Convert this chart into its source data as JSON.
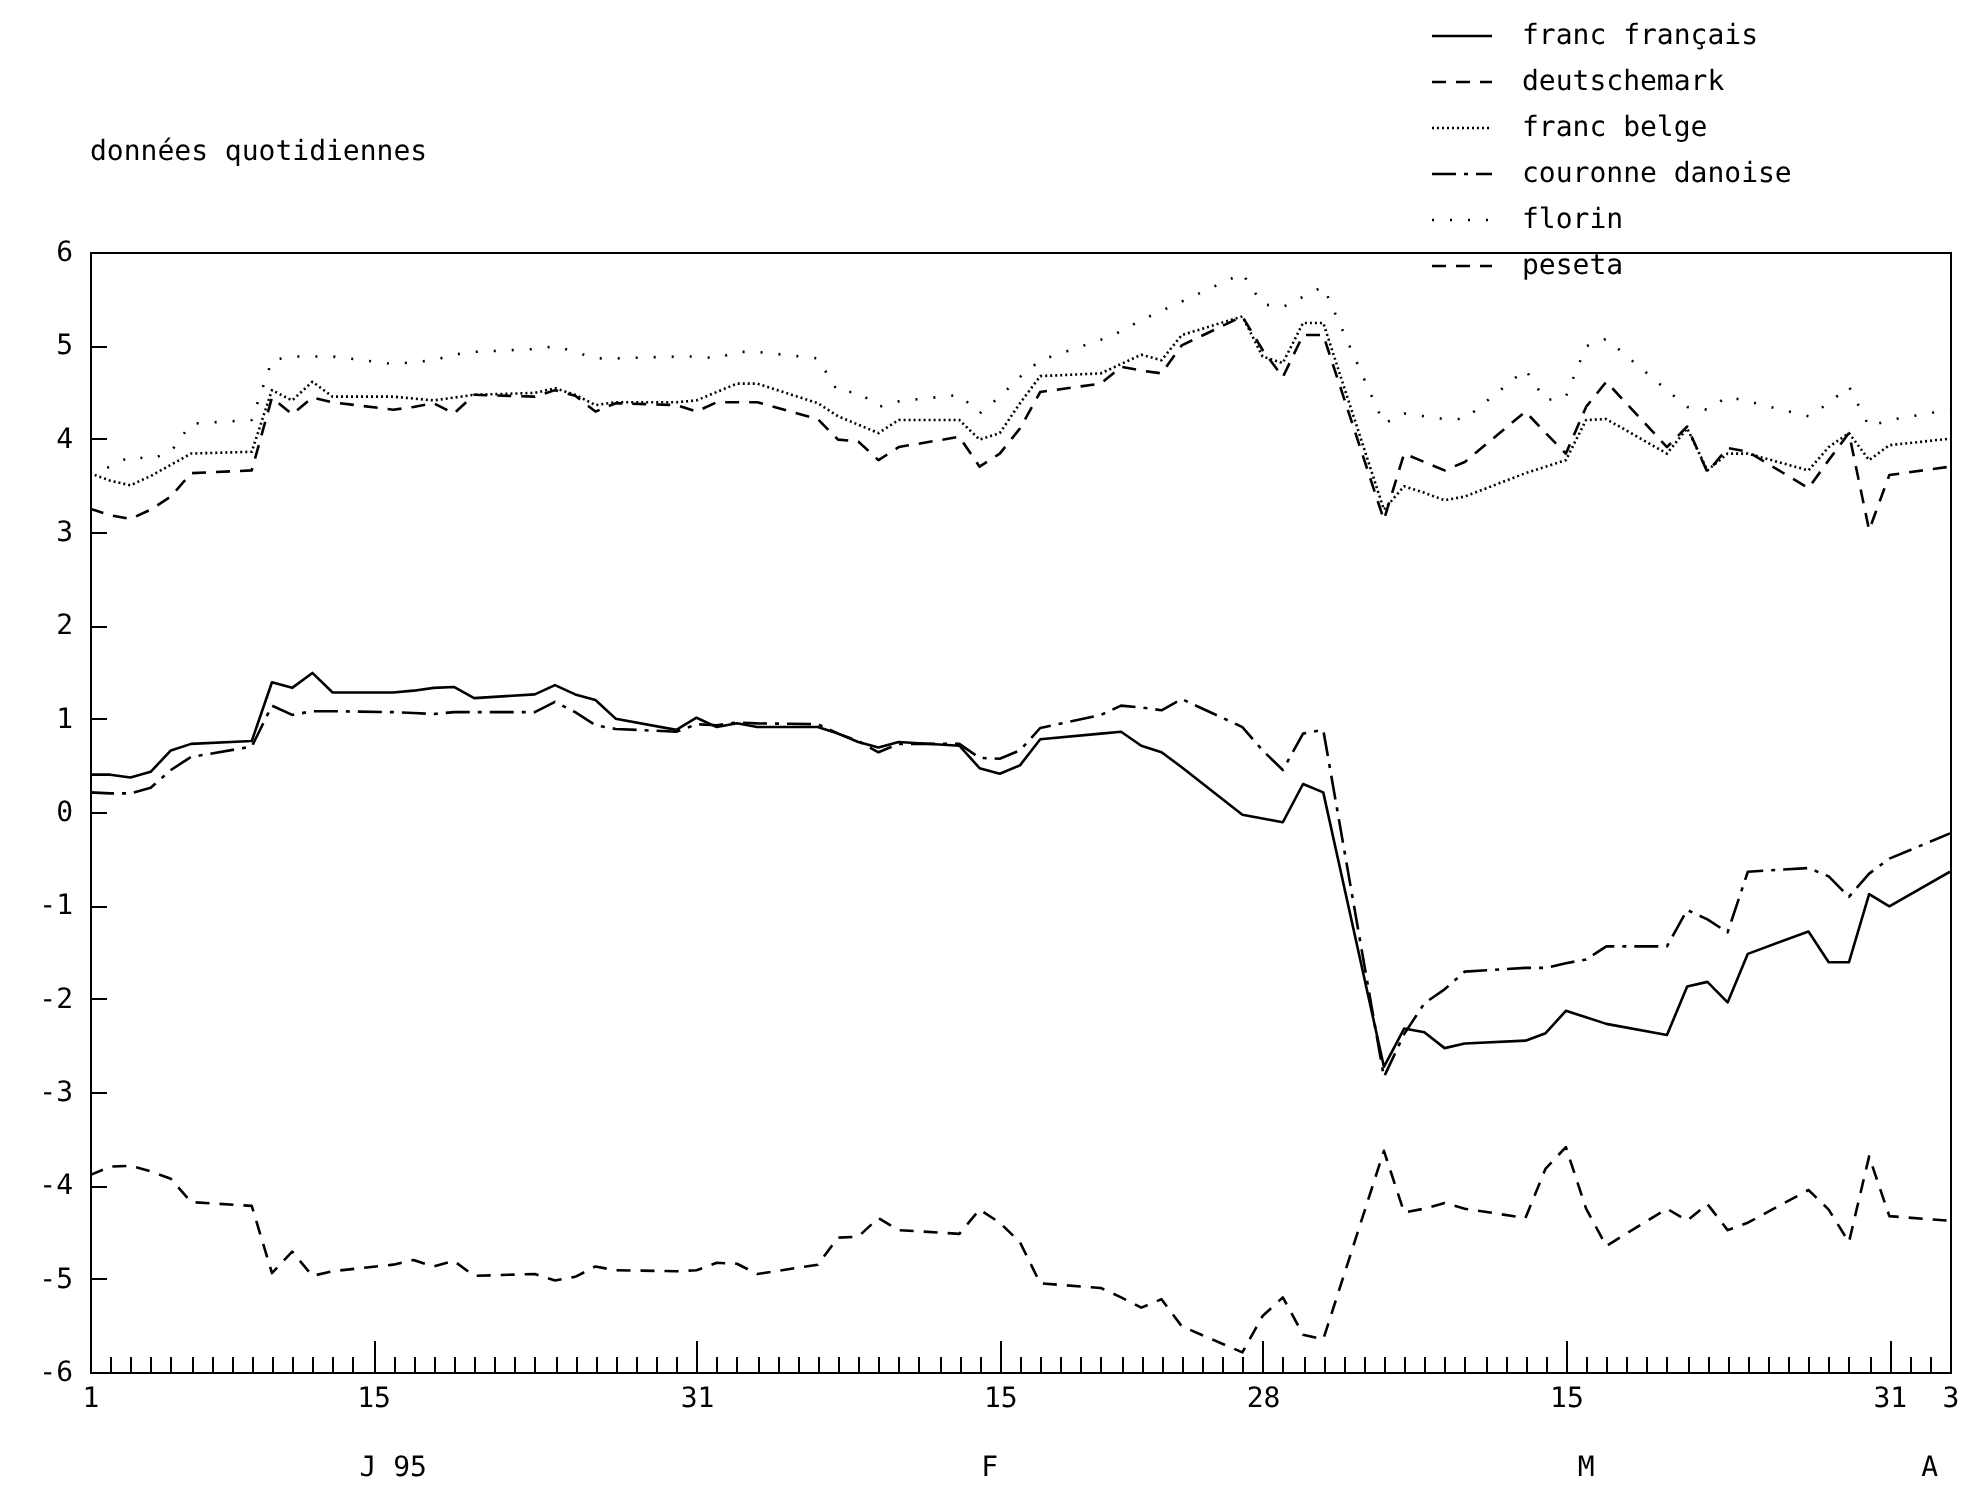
{
  "chart_data": {
    "type": "line",
    "title": "données quotidiennes",
    "x": [
      "--01-01",
      "--01-02",
      "--01-03",
      "--01-04",
      "--01-05",
      "--01-06",
      "--01-09",
      "--01-10",
      "--01-11",
      "--01-12",
      "--01-13",
      "--01-16",
      "--01-17",
      "--01-18",
      "--01-19",
      "--01-20",
      "--01-23",
      "--01-24",
      "--01-25",
      "--01-26",
      "--01-27",
      "--01-30",
      "--01-31",
      "--02-01",
      "--02-02",
      "--02-03",
      "--02-06",
      "--02-07",
      "--02-08",
      "--02-09",
      "--02-10",
      "--02-13",
      "--02-14",
      "--02-15",
      "--02-16",
      "--02-17",
      "--02-20",
      "--02-21",
      "--02-22",
      "--02-23",
      "--02-24",
      "--02-27",
      "--02-28",
      "--03-01",
      "--03-02",
      "--03-03",
      "--03-06",
      "--03-07",
      "--03-08",
      "--03-09",
      "--03-10",
      "--03-13",
      "--03-14",
      "--03-15",
      "--03-16",
      "--03-17",
      "--03-20",
      "--03-21",
      "--03-22",
      "--03-23",
      "--03-24",
      "--03-27",
      "--03-28",
      "--03-29",
      "--03-30",
      "--03-31",
      "--04-03"
    ],
    "series": [
      {
        "name": "franc français",
        "color": "#000000",
        "line_style": "solid",
        "values": [
          0.4,
          0.4,
          0.37,
          0.43,
          0.66,
          0.73,
          0.76,
          1.39,
          1.33,
          1.49,
          1.28,
          1.28,
          1.3,
          1.33,
          1.34,
          1.22,
          1.26,
          1.36,
          1.26,
          1.2,
          1.0,
          0.88,
          1.01,
          0.91,
          0.95,
          0.91,
          0.91,
          0.84,
          0.75,
          0.69,
          0.75,
          0.71,
          0.47,
          0.41,
          0.5,
          0.78,
          0.84,
          0.86,
          0.71,
          0.64,
          0.48,
          -0.03,
          -0.07,
          -0.11,
          0.3,
          0.21,
          -2.73,
          -2.32,
          -2.36,
          -2.53,
          -2.48,
          -2.45,
          -2.37,
          -2.13,
          -2.2,
          -2.27,
          -2.39,
          -1.87,
          -1.82,
          -2.04,
          -1.52,
          -1.28,
          -1.61,
          -1.61,
          -0.88,
          -1.01,
          -0.64
        ]
      },
      {
        "name": "deutschemark",
        "color": "#000000",
        "line_style": "dashed",
        "values": [
          3.25,
          3.18,
          3.14,
          3.24,
          3.38,
          3.63,
          3.66,
          4.44,
          4.26,
          4.44,
          4.39,
          4.31,
          4.34,
          4.38,
          4.27,
          4.47,
          4.45,
          4.52,
          4.46,
          4.29,
          4.38,
          4.36,
          4.29,
          4.39,
          4.39,
          4.39,
          4.21,
          3.99,
          3.97,
          3.77,
          3.91,
          4.02,
          3.7,
          3.84,
          4.11,
          4.5,
          4.59,
          4.77,
          4.73,
          4.7,
          5.0,
          5.31,
          4.95,
          4.66,
          5.11,
          5.11,
          3.13,
          3.84,
          3.75,
          3.66,
          3.75,
          4.29,
          4.06,
          3.84,
          4.34,
          4.61,
          3.91,
          4.13,
          3.64,
          3.9,
          3.86,
          3.47,
          3.77,
          4.06,
          3.02,
          3.61,
          3.7
        ]
      },
      {
        "name": "franc belge",
        "color": "#000000",
        "line_style": "dotted",
        "values": [
          3.63,
          3.55,
          3.5,
          3.6,
          3.72,
          3.84,
          3.86,
          4.52,
          4.41,
          4.61,
          4.45,
          4.45,
          4.43,
          4.41,
          4.44,
          4.47,
          4.49,
          4.54,
          4.47,
          4.36,
          4.39,
          4.39,
          4.41,
          4.5,
          4.59,
          4.59,
          4.38,
          4.24,
          4.15,
          4.06,
          4.2,
          4.2,
          3.99,
          4.06,
          4.38,
          4.67,
          4.7,
          4.8,
          4.9,
          4.84,
          5.11,
          5.31,
          4.88,
          4.81,
          5.24,
          5.24,
          3.24,
          3.49,
          3.42,
          3.34,
          3.38,
          3.63,
          3.7,
          3.77,
          4.2,
          4.21,
          3.84,
          4.11,
          3.66,
          3.84,
          3.84,
          3.66,
          3.91,
          4.06,
          3.77,
          3.93,
          4.0
        ]
      },
      {
        "name": "couronne danoise",
        "color": "#000000",
        "line_style": "dashdot",
        "values": [
          0.21,
          0.2,
          0.2,
          0.26,
          0.45,
          0.59,
          0.7,
          1.14,
          1.04,
          1.08,
          1.08,
          1.07,
          1.06,
          1.05,
          1.07,
          1.07,
          1.07,
          1.18,
          1.07,
          0.93,
          0.89,
          0.86,
          0.94,
          0.93,
          0.96,
          0.95,
          0.94,
          0.84,
          0.76,
          0.64,
          0.73,
          0.73,
          0.58,
          0.57,
          0.66,
          0.9,
          1.04,
          1.14,
          1.12,
          1.09,
          1.21,
          0.91,
          0.66,
          0.45,
          0.84,
          0.88,
          -2.84,
          -2.38,
          -2.05,
          -1.9,
          -1.71,
          -1.67,
          -1.67,
          -1.62,
          -1.58,
          -1.44,
          -1.44,
          -1.05,
          -1.15,
          -1.29,
          -0.64,
          -0.6,
          -0.69,
          -0.91,
          -0.66,
          -0.5,
          -0.23
        ]
      },
      {
        "name": "florin",
        "color": "#000000",
        "line_style": "loosely dotted",
        "values": [
          3.63,
          3.7,
          3.81,
          3.78,
          3.86,
          4.16,
          4.2,
          4.84,
          4.88,
          4.88,
          4.88,
          4.8,
          4.82,
          4.84,
          4.9,
          4.93,
          4.96,
          4.99,
          4.93,
          4.86,
          4.86,
          4.88,
          4.88,
          4.86,
          4.93,
          4.93,
          4.86,
          4.5,
          4.5,
          4.34,
          4.4,
          4.47,
          4.27,
          4.45,
          4.66,
          4.84,
          5.06,
          5.15,
          5.27,
          5.37,
          5.47,
          5.77,
          5.44,
          5.41,
          5.52,
          5.63,
          4.16,
          4.27,
          4.24,
          4.21,
          4.21,
          4.74,
          4.41,
          4.45,
          4.99,
          5.07,
          4.52,
          4.34,
          4.31,
          4.45,
          4.4,
          4.24,
          4.38,
          4.56,
          4.13,
          4.2,
          4.31
        ]
      },
      {
        "name": "peseta",
        "color": "#000000",
        "line_style": "dashed",
        "values": [
          -3.89,
          -3.8,
          -3.79,
          -3.85,
          -3.93,
          -4.18,
          -4.22,
          -4.94,
          -4.71,
          -4.97,
          -4.92,
          -4.85,
          -4.8,
          -4.87,
          -4.81,
          -4.97,
          -4.95,
          -5.02,
          -4.98,
          -4.87,
          -4.91,
          -4.92,
          -4.91,
          -4.83,
          -4.84,
          -4.95,
          -4.85,
          -4.56,
          -4.55,
          -4.35,
          -4.48,
          -4.52,
          -4.26,
          -4.4,
          -4.61,
          -5.05,
          -5.1,
          -5.2,
          -5.31,
          -5.22,
          -5.51,
          -5.79,
          -5.4,
          -5.2,
          -5.6,
          -5.65,
          -3.63,
          -4.29,
          -4.25,
          -4.19,
          -4.25,
          -4.35,
          -3.82,
          -3.59,
          -4.25,
          -4.65,
          -4.25,
          -4.38,
          -4.2,
          -4.48,
          -4.4,
          -4.05,
          -4.26,
          -4.61,
          -3.69,
          -4.33,
          -4.38
        ]
      }
    ],
    "xlim": [
      "--01-01",
      "--04-03"
    ],
    "xticks": [
      {
        "value": "--01-01",
        "label": "1"
      },
      {
        "value": "--01-02",
        "label": null
      },
      {
        "value": "--01-03",
        "label": null
      },
      {
        "value": "--01-04",
        "label": null
      },
      {
        "value": "--01-05",
        "label": null
      },
      {
        "value": "--01-06",
        "label": null
      },
      {
        "value": "--01-07",
        "label": null
      },
      {
        "value": "--01-08",
        "label": null
      },
      {
        "value": "--01-09",
        "label": null
      },
      {
        "value": "--01-10",
        "label": null
      },
      {
        "value": "--01-11",
        "label": null
      },
      {
        "value": "--01-12",
        "label": null
      },
      {
        "value": "--01-13",
        "label": null
      },
      {
        "value": "--01-14",
        "label": null
      },
      {
        "value": "--01-15",
        "label": "15"
      },
      {
        "value": "--01-16",
        "label": null
      },
      {
        "value": "--01-17",
        "label": null
      },
      {
        "value": "--01-18",
        "label": null
      },
      {
        "value": "--01-19",
        "label": null
      },
      {
        "value": "--01-20",
        "label": null
      },
      {
        "value": "--01-21",
        "label": null
      },
      {
        "value": "--01-22",
        "label": null
      },
      {
        "value": "--01-23",
        "label": null
      },
      {
        "value": "--01-24",
        "label": null
      },
      {
        "value": "--01-25",
        "label": null
      },
      {
        "value": "--01-26",
        "label": null
      },
      {
        "value": "--01-27",
        "label": null
      },
      {
        "value": "--01-28",
        "label": null
      },
      {
        "value": "--01-29",
        "label": null
      },
      {
        "value": "--01-30",
        "label": null
      },
      {
        "value": "--01-31",
        "label": "31"
      },
      {
        "value": "--02-01",
        "label": null
      },
      {
        "value": "--02-02",
        "label": null
      },
      {
        "value": "--02-03",
        "label": null
      },
      {
        "value": "--02-04",
        "label": null
      },
      {
        "value": "--02-05",
        "label": null
      },
      {
        "value": "--02-06",
        "label": null
      },
      {
        "value": "--02-07",
        "label": null
      },
      {
        "value": "--02-08",
        "label": null
      },
      {
        "value": "--02-09",
        "label": null
      },
      {
        "value": "--02-10",
        "label": null
      },
      {
        "value": "--02-11",
        "label": null
      },
      {
        "value": "--02-12",
        "label": null
      },
      {
        "value": "--02-13",
        "label": null
      },
      {
        "value": "--02-14",
        "label": null
      },
      {
        "value": "--02-15",
        "label": "15"
      },
      {
        "value": "--02-16",
        "label": null
      },
      {
        "value": "--02-17",
        "label": null
      },
      {
        "value": "--02-18",
        "label": null
      },
      {
        "value": "--02-19",
        "label": null
      },
      {
        "value": "--02-20",
        "label": null
      },
      {
        "value": "--02-21",
        "label": null
      },
      {
        "value": "--02-22",
        "label": null
      },
      {
        "value": "--02-23",
        "label": null
      },
      {
        "value": "--02-24",
        "label": null
      },
      {
        "value": "--02-25",
        "label": null
      },
      {
        "value": "--02-26",
        "label": null
      },
      {
        "value": "--02-27",
        "label": null
      },
      {
        "value": "--02-28",
        "label": "28"
      },
      {
        "value": "--03-01",
        "label": null
      },
      {
        "value": "--03-02",
        "label": null
      },
      {
        "value": "--03-03",
        "label": null
      },
      {
        "value": "--03-04",
        "label": null
      },
      {
        "value": "--03-05",
        "label": null
      },
      {
        "value": "--03-06",
        "label": null
      },
      {
        "value": "--03-07",
        "label": null
      },
      {
        "value": "--03-08",
        "label": null
      },
      {
        "value": "--03-09",
        "label": null
      },
      {
        "value": "--03-10",
        "label": null
      },
      {
        "value": "--03-11",
        "label": null
      },
      {
        "value": "--03-12",
        "label": null
      },
      {
        "value": "--03-13",
        "label": null
      },
      {
        "value": "--03-14",
        "label": null
      },
      {
        "value": "--03-15",
        "label": "15"
      },
      {
        "value": "--03-16",
        "label": null
      },
      {
        "value": "--03-17",
        "label": null
      },
      {
        "value": "--03-18",
        "label": null
      },
      {
        "value": "--03-19",
        "label": null
      },
      {
        "value": "--03-20",
        "label": null
      },
      {
        "value": "--03-21",
        "label": null
      },
      {
        "value": "--03-22",
        "label": null
      },
      {
        "value": "--03-23",
        "label": null
      },
      {
        "value": "--03-24",
        "label": null
      },
      {
        "value": "--03-25",
        "label": null
      },
      {
        "value": "--03-26",
        "label": null
      },
      {
        "value": "--03-27",
        "label": null
      },
      {
        "value": "--03-28",
        "label": null
      },
      {
        "value": "--03-29",
        "label": null
      },
      {
        "value": "--03-30",
        "label": null
      },
      {
        "value": "--03-31",
        "label": "31"
      },
      {
        "value": "--04-01",
        "label": null
      },
      {
        "value": "--04-02",
        "label": null
      },
      {
        "value": "--04-03",
        "label": "3"
      }
    ],
    "ylim": [
      -6,
      6
    ],
    "yticks": [
      -6,
      -5,
      -4,
      -3,
      -2,
      -1,
      0,
      1,
      2,
      3,
      4,
      5,
      6
    ],
    "annotations": [
      "J 95",
      "F",
      "M",
      "A"
    ],
    "legend": "top right",
    "grid": false,
    "marker": "none"
  }
}
